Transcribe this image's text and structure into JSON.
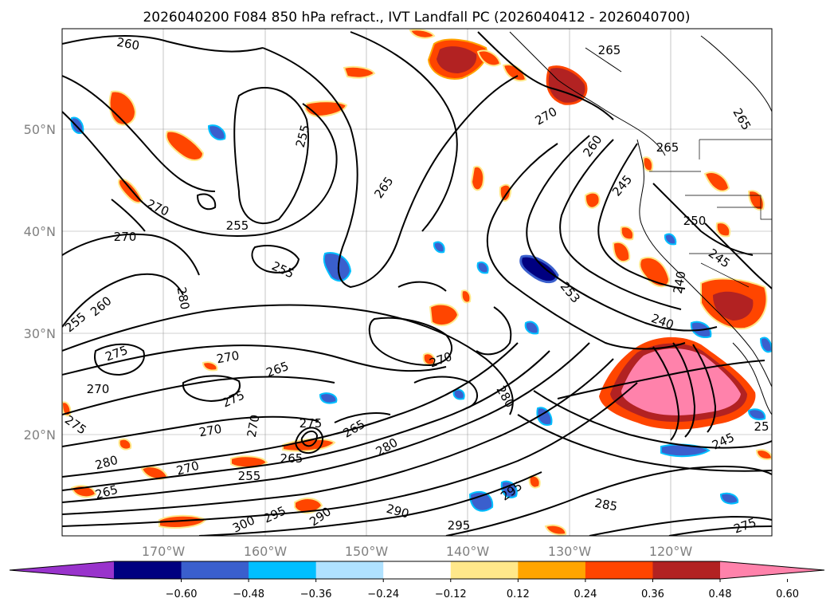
{
  "figure": {
    "title": "2026040200 F084 850 hPa refract., IVT Landfall PC (2026040412 - 2026040700)"
  },
  "map": {
    "lat_ticks": [
      {
        "label": "50°N",
        "value": 50
      },
      {
        "label": "40°N",
        "value": 40
      },
      {
        "label": "30°N",
        "value": 30
      },
      {
        "label": "20°N",
        "value": 20
      }
    ],
    "lon_ticks": [
      {
        "label": "170°W",
        "value": -170
      },
      {
        "label": "160°W",
        "value": -160
      },
      {
        "label": "150°W",
        "value": -150
      },
      {
        "label": "140°W",
        "value": -140
      },
      {
        "label": "130°W",
        "value": -130
      },
      {
        "label": "120°W",
        "value": -120
      }
    ],
    "contour_labels": [
      {
        "text": "260"
      },
      {
        "text": "265"
      },
      {
        "text": "255"
      },
      {
        "text": "270"
      },
      {
        "text": "270"
      },
      {
        "text": "255"
      },
      {
        "text": "255"
      },
      {
        "text": "265"
      },
      {
        "text": "270"
      },
      {
        "text": "260"
      },
      {
        "text": "265"
      },
      {
        "text": "245"
      },
      {
        "text": "250"
      },
      {
        "text": "245"
      },
      {
        "text": "240"
      },
      {
        "text": "240"
      },
      {
        "text": "280"
      },
      {
        "text": "255"
      },
      {
        "text": "260"
      },
      {
        "text": "275"
      },
      {
        "text": "270"
      },
      {
        "text": "270"
      },
      {
        "text": "265"
      },
      {
        "text": "275"
      },
      {
        "text": "270"
      },
      {
        "text": "270"
      },
      {
        "text": "275"
      },
      {
        "text": "270"
      },
      {
        "text": "280"
      },
      {
        "text": "275"
      },
      {
        "text": "265"
      },
      {
        "text": "280"
      },
      {
        "text": "280"
      },
      {
        "text": "265"
      },
      {
        "text": "270"
      },
      {
        "text": "255"
      },
      {
        "text": "265"
      },
      {
        "text": "300"
      },
      {
        "text": "295"
      },
      {
        "text": "290"
      },
      {
        "text": "290"
      },
      {
        "text": "295"
      },
      {
        "text": "295"
      },
      {
        "text": "285"
      },
      {
        "text": "245"
      },
      {
        "text": "25"
      },
      {
        "text": "275"
      },
      {
        "text": "253"
      },
      {
        "text": "265"
      }
    ]
  },
  "colorbar": {
    "colors": [
      "#9933cc",
      "#000080",
      "#3a5fcd",
      "#00bfff",
      "#b0e2ff",
      "#ffffff",
      "#ffe88a",
      "#ffa500",
      "#ff4500",
      "#b22222",
      "#ff82ab"
    ],
    "tick_labels": [
      "−0.60",
      "−0.48",
      "−0.36",
      "−0.24",
      "−0.12",
      "0.12",
      "0.24",
      "0.36",
      "0.48",
      "0.60"
    ]
  }
}
